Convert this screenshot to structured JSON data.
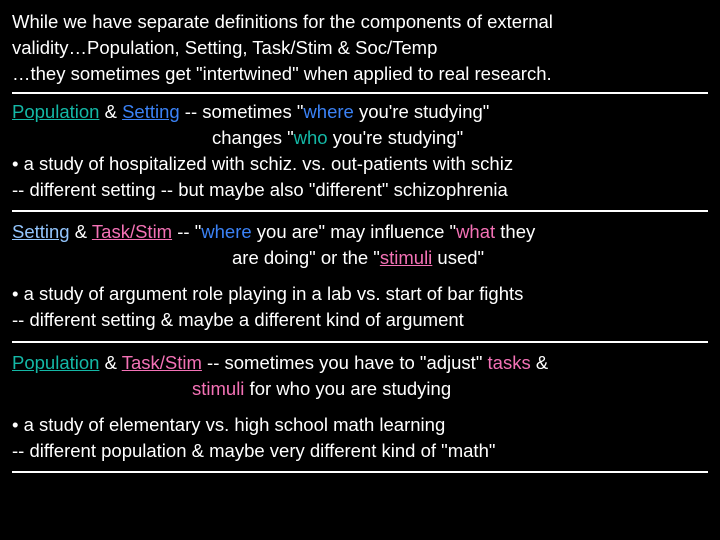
{
  "intro": {
    "l1": "While we have separate definitions for the components of external",
    "l2": "validity…Population, Setting, Task/Stim & Soc/Temp",
    "l3": "…they sometimes get \"intertwined\" when applied to real research."
  },
  "s1": {
    "pop": "Population",
    "amp": " & ",
    "set": "Setting",
    "dash": " --  sometimes \"",
    "where": "where",
    "t1b": " you're studying\"",
    "t2a": "changes \"",
    "who": "who",
    "t2b": " you're studying\"",
    "b1": "• a study of hospitalized with schiz. vs. out-patients with schiz",
    "b2": "    -- different setting -- but maybe also \"different\" schizophrenia"
  },
  "s2": {
    "set": "Setting",
    "amp": " & ",
    "ts": "Task/Stim",
    "dash": " -- \"",
    "where": "where",
    "t1b": " you are\" may influence \"",
    "what": "what",
    "t1c": " they",
    "t2a": "are doing\" or the \"",
    "stimuli": "stimuli",
    "t2b": " used\"",
    "b1": "• a study of argument role playing in a lab vs. start of bar fights",
    "b2": "     -- different setting  & maybe a different kind of argument"
  },
  "s3": {
    "pop": "Population",
    "amp": " & ",
    "ts": "Task/Stim",
    "dash": " -- sometimes you have to \"adjust\" ",
    "tasks": "tasks",
    "t1b": " &",
    "stimuli": "stimuli",
    "t2b": " for who you are studying",
    "b1": "• a study of elementary vs. high school math learning",
    "b2": "      -- different population & maybe very different kind of \"math\""
  },
  "colors": {
    "background": "#000000",
    "text": "#ffffff",
    "population": "#14b8a6",
    "setting": "#3b82f6",
    "taskstim": "#f472b6"
  }
}
